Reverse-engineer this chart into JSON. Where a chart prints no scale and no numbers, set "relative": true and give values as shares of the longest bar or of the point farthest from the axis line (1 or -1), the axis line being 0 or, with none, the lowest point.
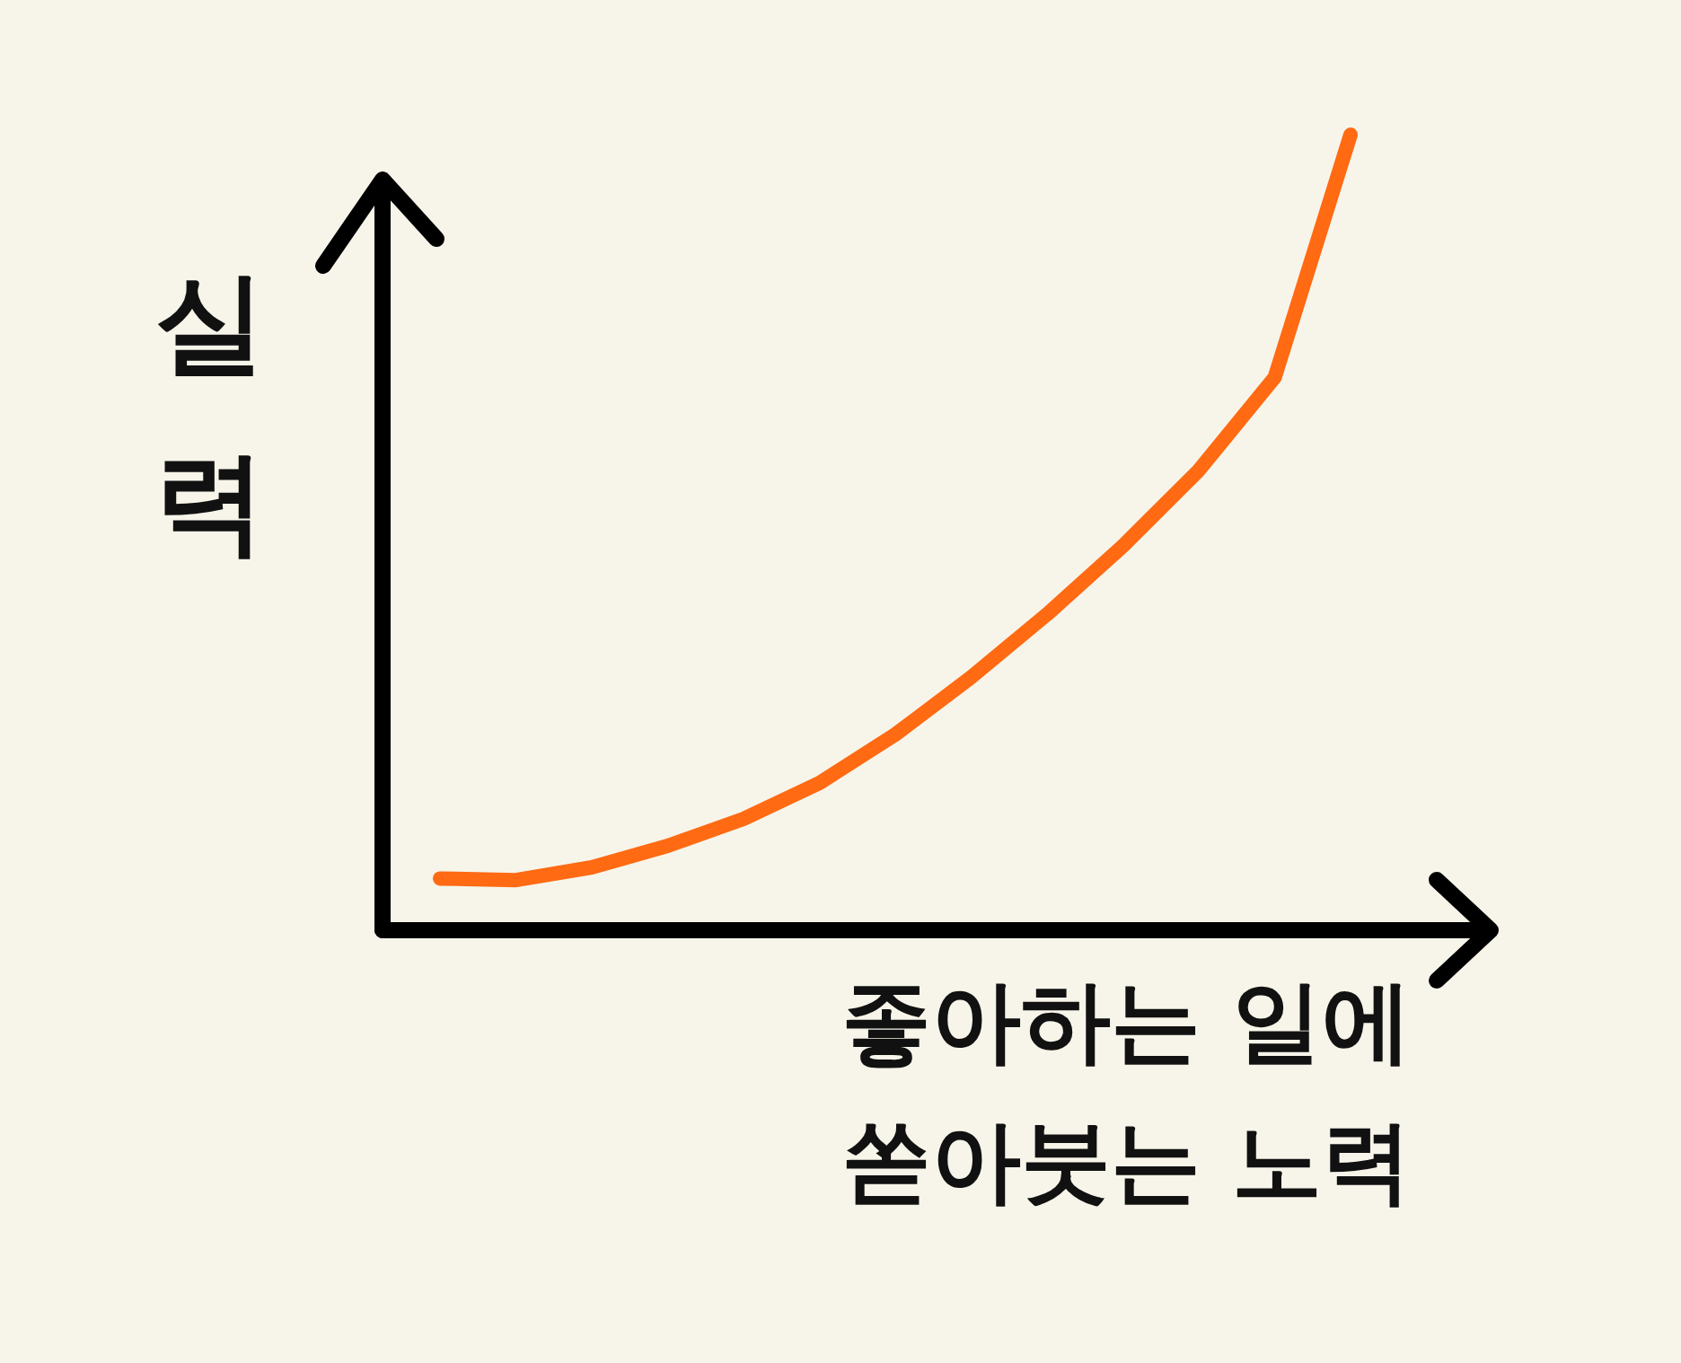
{
  "chart_data": {
    "type": "line",
    "relative": true,
    "xlabel": "좋아하는 일에 쏟아붓는 노력",
    "ylabel": "실력",
    "categories": [
      null,
      null,
      null,
      null,
      null,
      null,
      null,
      null,
      null,
      null,
      null,
      null,
      null
    ],
    "series": [
      {
        "color": "#ff6a13",
        "values": [
          0.065,
          0.063,
          0.079,
          0.106,
          0.14,
          0.185,
          0.246,
          0.318,
          0.397,
          0.483,
          0.578,
          0.695,
          1.0
        ]
      }
    ]
  }
}
